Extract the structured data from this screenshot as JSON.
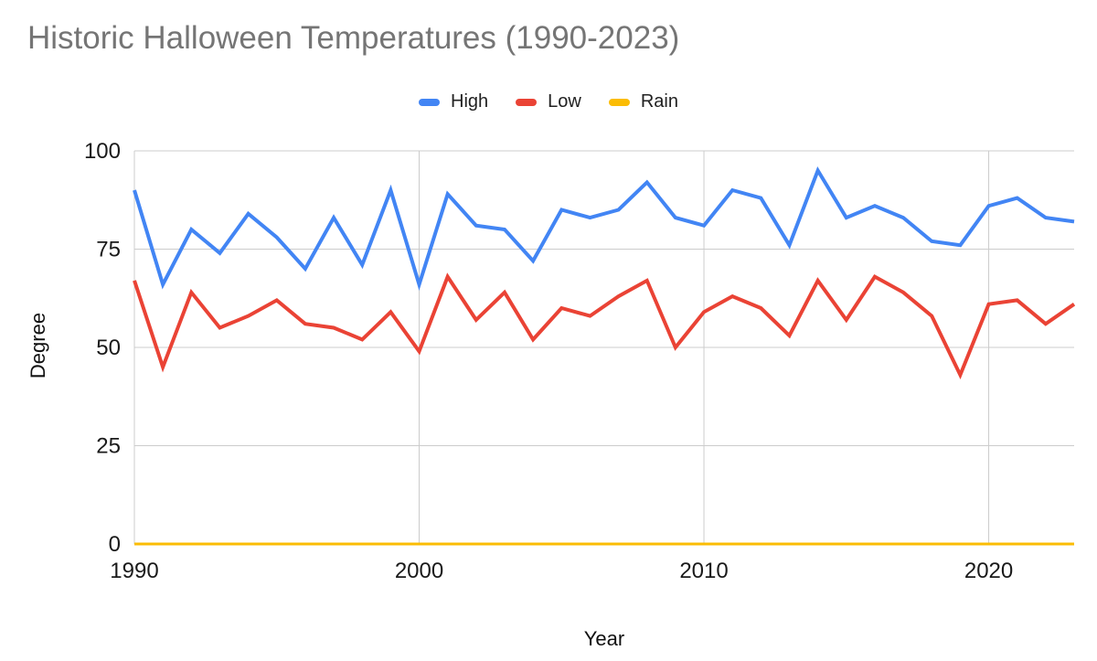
{
  "title": "Historic Halloween Temperatures (1990-2023)",
  "chart_data": {
    "type": "line",
    "title": "Historic Halloween Temperatures (1990-2023)",
    "xlabel": "Year",
    "ylabel": "Degree",
    "xlim": [
      1990,
      2023
    ],
    "ylim": [
      0,
      100
    ],
    "x_ticks": [
      1990,
      2000,
      2010,
      2020
    ],
    "y_ticks": [
      0,
      25,
      50,
      75,
      100
    ],
    "grid": true,
    "legend_position": "top",
    "x": [
      1990,
      1991,
      1992,
      1993,
      1994,
      1995,
      1996,
      1997,
      1998,
      1999,
      2000,
      2001,
      2002,
      2003,
      2004,
      2005,
      2006,
      2007,
      2008,
      2009,
      2010,
      2011,
      2012,
      2013,
      2014,
      2015,
      2016,
      2017,
      2018,
      2019,
      2020,
      2021,
      2022,
      2023
    ],
    "series": [
      {
        "name": "High",
        "color": "#4285F4",
        "values": [
          90,
          66,
          80,
          74,
          84,
          78,
          70,
          83,
          71,
          90,
          66,
          89,
          81,
          80,
          72,
          85,
          83,
          85,
          92,
          83,
          81,
          90,
          88,
          76,
          95,
          83,
          86,
          83,
          77,
          76,
          86,
          88,
          83,
          82
        ]
      },
      {
        "name": "Low",
        "color": "#EA4335",
        "values": [
          67,
          45,
          64,
          55,
          58,
          62,
          56,
          55,
          52,
          59,
          49,
          68,
          57,
          64,
          52,
          60,
          58,
          63,
          67,
          50,
          59,
          63,
          60,
          53,
          67,
          57,
          68,
          64,
          58,
          43,
          61,
          62,
          56,
          61
        ]
      },
      {
        "name": "Rain",
        "color": "#FBBC04",
        "values": [
          0,
          0,
          0,
          0,
          0,
          0,
          0,
          0,
          0,
          0,
          0,
          0,
          0,
          0,
          0,
          0,
          0,
          0,
          0,
          0,
          0,
          0,
          0,
          0,
          0,
          0,
          0,
          0,
          0,
          0,
          0,
          0,
          0,
          0
        ]
      }
    ]
  },
  "colors": {
    "title_text": "#757575",
    "axis_text": "#1a1a1a",
    "legend_text": "#212121",
    "gridline": "#cccccc",
    "background": "#ffffff"
  }
}
